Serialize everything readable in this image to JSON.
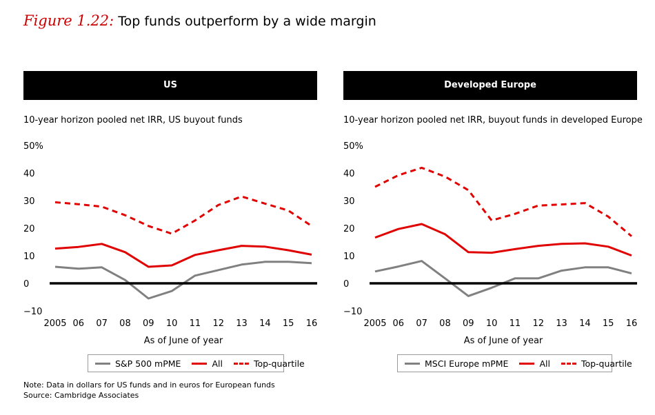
{
  "figure": {
    "label": "Figure 1.22:",
    "title": "Top funds outperform by a wide margin"
  },
  "colors": {
    "red": "#e00000",
    "gray": "#808080",
    "axis": "#000000",
    "header_bg": "#000000",
    "header_text": "#ffffff"
  },
  "chart_data": [
    {
      "type": "line",
      "panel_title": "US",
      "title": "10-year horizon pooled net IRR, US buyout funds",
      "xlabel": "As of June of year",
      "ylabel": "",
      "categories": [
        "2005",
        "06",
        "07",
        "08",
        "09",
        "10",
        "11",
        "12",
        "13",
        "14",
        "15",
        "16"
      ],
      "y_ticks": [
        "50%",
        "40",
        "30",
        "20",
        "10",
        "0",
        "−10"
      ],
      "ylim": [
        -10,
        50
      ],
      "series": [
        {
          "name": "S&P 500 mPME",
          "style": "solid",
          "color": "gray",
          "values": [
            6,
            5.3,
            5.8,
            1.2,
            -5.5,
            -2.8,
            2.8,
            4.8,
            6.8,
            7.8,
            7.8,
            7.3
          ]
        },
        {
          "name": "All",
          "style": "solid",
          "color": "red",
          "values": [
            12.6,
            13.2,
            14.3,
            11.3,
            6,
            6.5,
            10.3,
            12,
            13.6,
            13.3,
            12,
            10.4
          ]
        },
        {
          "name": "Top-quartile",
          "style": "dashed",
          "color": "red",
          "values": [
            29.4,
            28.7,
            27.8,
            24.7,
            20.8,
            18,
            22.8,
            28.4,
            31.5,
            28.9,
            26.4,
            20.8
          ]
        }
      ],
      "legend_position": "bottom"
    },
    {
      "type": "line",
      "panel_title": "Developed Europe",
      "title": "10-year horizon pooled net IRR, buyout funds in developed Europe",
      "xlabel": "As of June of year",
      "ylabel": "",
      "categories": [
        "2005",
        "06",
        "07",
        "08",
        "09",
        "10",
        "11",
        "12",
        "13",
        "14",
        "15",
        "16"
      ],
      "y_ticks": [
        "50%",
        "40",
        "30",
        "20",
        "10",
        "0",
        "−10"
      ],
      "ylim": [
        -10,
        50
      ],
      "series": [
        {
          "name": "MSCI Europe mPME",
          "style": "solid",
          "color": "gray",
          "values": [
            4.3,
            6.1,
            8.1,
            1.8,
            -4.6,
            -1.6,
            1.8,
            1.8,
            4.6,
            5.8,
            5.8,
            3.6
          ]
        },
        {
          "name": "All",
          "style": "solid",
          "color": "red",
          "values": [
            16.6,
            19.7,
            21.5,
            17.8,
            11.3,
            11.1,
            12.4,
            13.6,
            14.3,
            14.5,
            13.3,
            10.1
          ]
        },
        {
          "name": "Top-quartile",
          "style": "dashed",
          "color": "red",
          "values": [
            35,
            39.2,
            41.9,
            38.7,
            33.8,
            22.8,
            25.2,
            28.2,
            28.6,
            29.1,
            24.2,
            17.1
          ]
        }
      ],
      "legend_position": "bottom"
    }
  ],
  "note": {
    "line1": "Note: Data in dollars for US funds and in euros for European funds",
    "line2": "Source: Cambridge Associates"
  }
}
